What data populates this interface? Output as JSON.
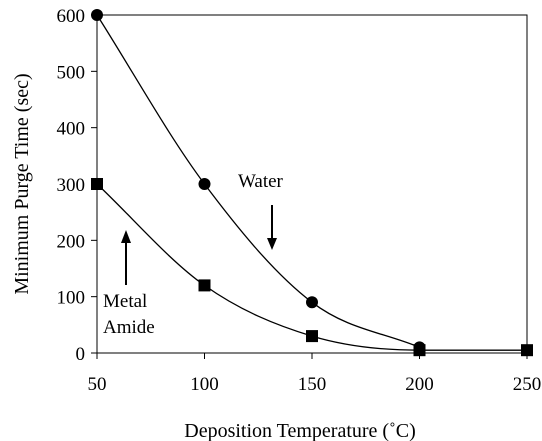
{
  "chart_data": {
    "type": "scatter",
    "xlabel": "Deposition Temperature (˚C)",
    "ylabel": "Minimum Purge Time (sec)",
    "xlim": [
      50,
      250
    ],
    "ylim": [
      0,
      600
    ],
    "xticks": [
      50,
      100,
      150,
      200,
      250
    ],
    "yticks": [
      0,
      100,
      200,
      300,
      400,
      500,
      600
    ],
    "grid": false,
    "series": [
      {
        "name": "Water",
        "marker": "circle",
        "x": [
          50,
          100,
          150,
          200
        ],
        "y": [
          600,
          300,
          90,
          10
        ]
      },
      {
        "name": "Metal Amide",
        "marker": "square",
        "x": [
          50,
          100,
          150,
          200,
          250
        ],
        "y": [
          300,
          120,
          30,
          5,
          5
        ]
      }
    ],
    "annotations": {
      "water": {
        "text": "Water"
      },
      "amide": {
        "lines": [
          "Metal",
          "Amide"
        ]
      }
    },
    "colors": {
      "line": "#000000",
      "marker": "#000000",
      "background": "#ffffff"
    }
  }
}
